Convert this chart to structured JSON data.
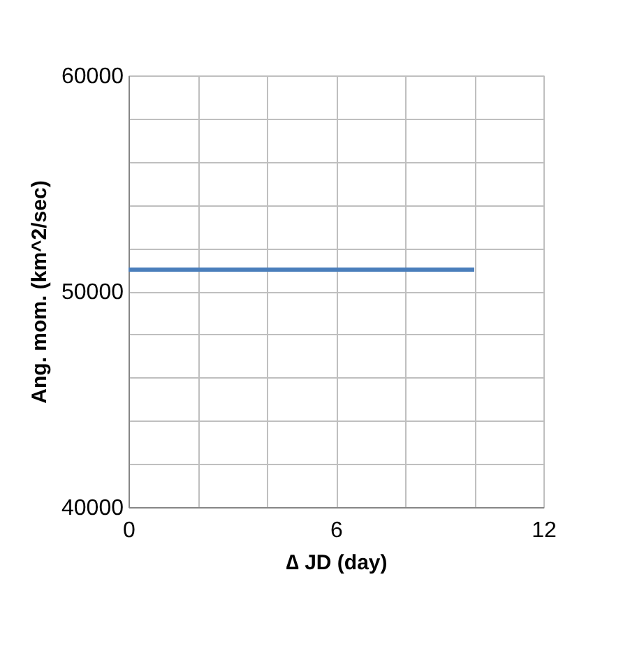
{
  "chart_data": {
    "type": "line",
    "xlabel": "∆ JD (day)",
    "ylabel": "Ang. mom. (km^2/sec)",
    "x": [
      0,
      10
    ],
    "series": [
      {
        "color": "#4a7ebb",
        "values": [
          51000,
          51000
        ]
      }
    ],
    "xlim": [
      0,
      12
    ],
    "xticks": [
      0,
      {
        "value": 2,
        "label": null
      },
      {
        "value": 4,
        "label": null
      },
      6,
      {
        "value": 8,
        "label": null
      },
      {
        "value": 10,
        "label": null
      },
      12
    ],
    "ylim": [
      40000,
      60000
    ],
    "yticks": [
      40000,
      {
        "value": 42000,
        "label": null
      },
      {
        "value": 44000,
        "label": null
      },
      {
        "value": 46000,
        "label": null
      },
      {
        "value": 48000,
        "label": null
      },
      50000,
      {
        "value": 52000,
        "label": null
      },
      {
        "value": 54000,
        "label": null
      },
      {
        "value": 56000,
        "label": null
      },
      {
        "value": 58000,
        "label": null
      },
      60000
    ],
    "grid": true,
    "marker": "none",
    "line_style": "solid"
  }
}
